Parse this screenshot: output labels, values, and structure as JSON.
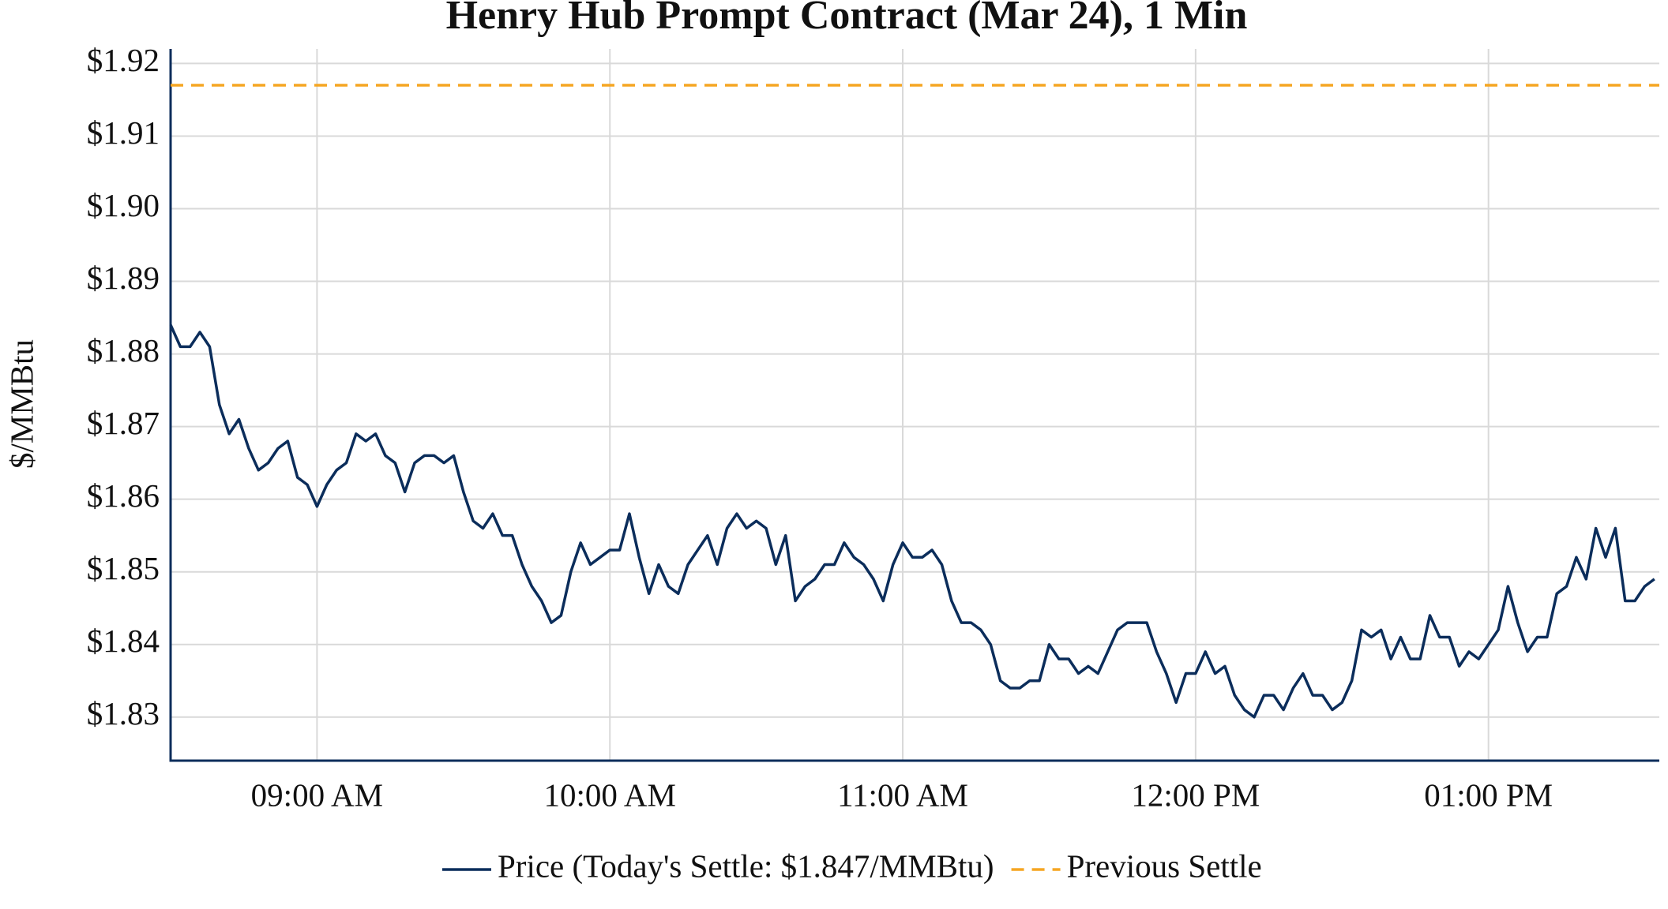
{
  "chart_data": {
    "type": "line",
    "title": "Henry Hub Prompt Contract (Mar 24), 1 Min",
    "y_label": "$/MMBtu",
    "xlim": [
      "08:30",
      "13:35"
    ],
    "xticks": [
      {
        "value": "09:00",
        "label": "09:00 AM"
      },
      {
        "value": "10:00",
        "label": "10:00 AM"
      },
      {
        "value": "11:00",
        "label": "11:00 AM"
      },
      {
        "value": "12:00",
        "label": "12:00 PM"
      },
      {
        "value": "13:00",
        "label": "01:00 PM"
      }
    ],
    "ylim": [
      1.824,
      1.922
    ],
    "yticks": [
      {
        "value": 1.83,
        "label": "$1.83"
      },
      {
        "value": 1.84,
        "label": "$1.84"
      },
      {
        "value": 1.85,
        "label": "$1.85"
      },
      {
        "value": 1.86,
        "label": "$1.86"
      },
      {
        "value": 1.87,
        "label": "$1.87"
      },
      {
        "value": 1.88,
        "label": "$1.88"
      },
      {
        "value": 1.89,
        "label": "$1.89"
      },
      {
        "value": 1.9,
        "label": "$1.90"
      },
      {
        "value": 1.91,
        "label": "$1.91"
      },
      {
        "value": 1.92,
        "label": "$1.92"
      }
    ],
    "grid": true,
    "legend": "bottom",
    "x": [
      "08:30",
      "08:32",
      "08:34",
      "08:36",
      "08:38",
      "08:40",
      "08:42",
      "08:44",
      "08:46",
      "08:48",
      "08:50",
      "08:52",
      "08:54",
      "08:56",
      "08:58",
      "09:00",
      "09:02",
      "09:04",
      "09:06",
      "09:08",
      "09:10",
      "09:12",
      "09:14",
      "09:16",
      "09:18",
      "09:20",
      "09:22",
      "09:24",
      "09:26",
      "09:28",
      "09:30",
      "09:32",
      "09:34",
      "09:36",
      "09:38",
      "09:40",
      "09:42",
      "09:44",
      "09:46",
      "09:48",
      "09:50",
      "09:52",
      "09:54",
      "09:56",
      "09:58",
      "10:00",
      "10:02",
      "10:04",
      "10:06",
      "10:08",
      "10:10",
      "10:12",
      "10:14",
      "10:16",
      "10:18",
      "10:20",
      "10:22",
      "10:24",
      "10:26",
      "10:28",
      "10:30",
      "10:32",
      "10:34",
      "10:36",
      "10:38",
      "10:40",
      "10:42",
      "10:44",
      "10:46",
      "10:48",
      "10:50",
      "10:52",
      "10:54",
      "10:56",
      "10:58",
      "11:00",
      "11:02",
      "11:04",
      "11:06",
      "11:08",
      "11:10",
      "11:12",
      "11:14",
      "11:16",
      "11:18",
      "11:20",
      "11:22",
      "11:24",
      "11:26",
      "11:28",
      "11:30",
      "11:32",
      "11:34",
      "11:36",
      "11:38",
      "11:40",
      "11:42",
      "11:44",
      "11:46",
      "11:48",
      "11:50",
      "11:52",
      "11:54",
      "11:56",
      "11:58",
      "12:00",
      "12:02",
      "12:04",
      "12:06",
      "12:08",
      "12:10",
      "12:12",
      "12:14",
      "12:16",
      "12:18",
      "12:20",
      "12:22",
      "12:24",
      "12:26",
      "12:28",
      "12:30",
      "12:32",
      "12:34",
      "12:36",
      "12:38",
      "12:40",
      "12:42",
      "12:44",
      "12:46",
      "12:48",
      "12:50",
      "12:52",
      "12:54",
      "12:56",
      "12:58",
      "13:00",
      "13:02",
      "13:04",
      "13:06",
      "13:08",
      "13:10",
      "13:12",
      "13:14",
      "13:16",
      "13:18",
      "13:20",
      "13:22",
      "13:24",
      "13:26",
      "13:28",
      "13:30",
      "13:32",
      "13:34"
    ],
    "series": [
      {
        "name": "Price (Today's Settle: $1.847/MMBtu)",
        "color": "#0b2d5b",
        "values": [
          1.884,
          1.881,
          1.881,
          1.883,
          1.881,
          1.873,
          1.869,
          1.871,
          1.867,
          1.864,
          1.865,
          1.867,
          1.868,
          1.863,
          1.862,
          1.859,
          1.862,
          1.864,
          1.865,
          1.869,
          1.868,
          1.869,
          1.866,
          1.865,
          1.861,
          1.865,
          1.866,
          1.866,
          1.865,
          1.866,
          1.861,
          1.857,
          1.856,
          1.858,
          1.855,
          1.855,
          1.851,
          1.848,
          1.846,
          1.843,
          1.844,
          1.85,
          1.854,
          1.851,
          1.852,
          1.853,
          1.853,
          1.858,
          1.852,
          1.847,
          1.851,
          1.848,
          1.847,
          1.851,
          1.853,
          1.855,
          1.851,
          1.856,
          1.858,
          1.856,
          1.857,
          1.856,
          1.851,
          1.855,
          1.846,
          1.848,
          1.849,
          1.851,
          1.851,
          1.854,
          1.852,
          1.851,
          1.849,
          1.846,
          1.851,
          1.854,
          1.852,
          1.852,
          1.853,
          1.851,
          1.846,
          1.843,
          1.843,
          1.842,
          1.84,
          1.835,
          1.834,
          1.834,
          1.835,
          1.835,
          1.84,
          1.838,
          1.838,
          1.836,
          1.837,
          1.836,
          1.839,
          1.842,
          1.843,
          1.843,
          1.843,
          1.839,
          1.836,
          1.832,
          1.836,
          1.836,
          1.839,
          1.836,
          1.837,
          1.833,
          1.831,
          1.83,
          1.833,
          1.833,
          1.831,
          1.834,
          1.836,
          1.833,
          1.833,
          1.831,
          1.832,
          1.835,
          1.842,
          1.841,
          1.842,
          1.838,
          1.841,
          1.838,
          1.838,
          1.844,
          1.841,
          1.841,
          1.837,
          1.839,
          1.838,
          1.84,
          1.842,
          1.848,
          1.843,
          1.839,
          1.841,
          1.841,
          1.847,
          1.848,
          1.852,
          1.849,
          1.856,
          1.852,
          1.856,
          1.846,
          1.846,
          1.848,
          1.849
        ]
      }
    ],
    "reference_lines": [
      {
        "name": "Previous Settle",
        "value": 1.917,
        "color": "#f5a623",
        "dash": true
      }
    ]
  }
}
